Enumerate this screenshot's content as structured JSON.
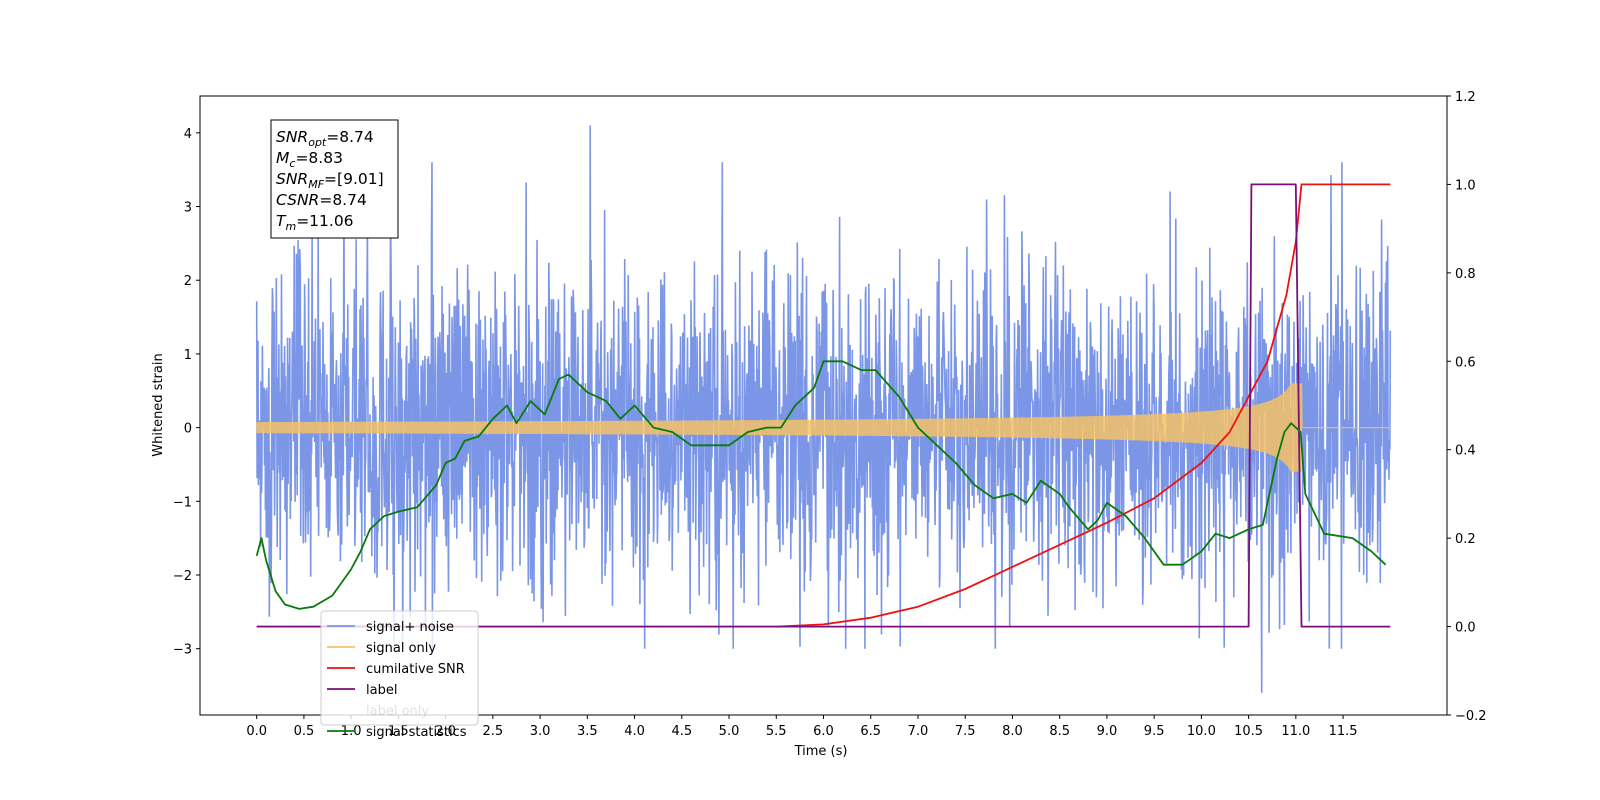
{
  "chart_data": {
    "type": "line",
    "xlabel": "Time (s)",
    "ylabel": "Whitened strain",
    "ylabel_right": "",
    "xlim": [
      -0.6,
      12.6
    ],
    "ylim": [
      -3.9,
      4.5
    ],
    "ylim_right": [
      -0.2,
      1.2
    ],
    "x_ticks": [
      "0.0",
      "0.5",
      "1.0",
      "1.5",
      "2.0",
      "2.5",
      "3.0",
      "3.5",
      "4.0",
      "4.5",
      "5.0",
      "5.5",
      "6.0",
      "6.5",
      "7.0",
      "7.5",
      "8.0",
      "8.5",
      "9.0",
      "9.5",
      "10.0",
      "10.5",
      "11.0",
      "11.5"
    ],
    "y_ticks": [
      "4",
      "3",
      "2",
      "1",
      "0",
      "−1",
      "−2",
      "−3"
    ],
    "y_ticks_right": [
      "1.2",
      "1.0",
      "0.8",
      "0.6",
      "0.4",
      "0.2",
      "0.0",
      "−0.2"
    ],
    "grid": false,
    "legend_position": "lower-left",
    "stats_box": {
      "lines": [
        {
          "symbol": "SNR",
          "sub": "opt",
          "value": "=8.74"
        },
        {
          "symbol": "M",
          "sub": "c",
          "value": "=8.83"
        },
        {
          "symbol": "SNR",
          "sub": "MF",
          "value": "=[9.01]"
        },
        {
          "symbol": "CSNR",
          "sub": "",
          "value": "=8.74"
        },
        {
          "symbol": "T",
          "sub": "m",
          "value": "=11.06"
        }
      ]
    },
    "series": [
      {
        "name": "signal+ noise",
        "color": "#7b96e6",
        "axis": "left",
        "description_values": {
          "x_range": [
            0.0,
            12.0
          ],
          "amplitude_typical": 1.5,
          "peak_max": 4.1,
          "peak_min": -3.6
        }
      },
      {
        "name": "signal only",
        "color": "#f5c267",
        "axis": "left",
        "chirp": {
          "t_start": 0.0,
          "t_merger": 11.06,
          "t_end": 12.0,
          "peak_amplitude": 0.6
        }
      },
      {
        "name": "cumilative SNR",
        "color": "#ee1111",
        "axis": "right",
        "x": [
          0.0,
          5.5,
          6.0,
          6.5,
          7.0,
          7.5,
          8.0,
          8.5,
          9.0,
          9.5,
          10.0,
          10.3,
          10.5,
          10.7,
          10.9,
          11.0,
          11.06,
          11.5,
          12.0
        ],
        "values": [
          0.0,
          0.0,
          0.005,
          0.02,
          0.045,
          0.085,
          0.135,
          0.185,
          0.235,
          0.29,
          0.37,
          0.44,
          0.52,
          0.6,
          0.75,
          0.87,
          1.0,
          1.0,
          1.0
        ]
      },
      {
        "name": "label",
        "color": "#7a0f7a",
        "axis": "right",
        "x": [
          0.0,
          10.5,
          10.53,
          11.0,
          11.06,
          12.0
        ],
        "values": [
          0.0,
          0.0,
          1.0,
          1.0,
          0.0,
          0.0
        ]
      },
      {
        "name": "label only",
        "color": "#7a0f7a",
        "axis": "right",
        "hidden": true
      },
      {
        "name": "signal statistics",
        "color": "#0a7a0a",
        "axis": "right",
        "x": [
          0.0,
          0.05,
          0.1,
          0.2,
          0.3,
          0.45,
          0.6,
          0.8,
          1.0,
          1.1,
          1.2,
          1.35,
          1.5,
          1.7,
          1.9,
          2.0,
          2.1,
          2.2,
          2.35,
          2.5,
          2.65,
          2.75,
          2.9,
          3.05,
          3.2,
          3.3,
          3.5,
          3.7,
          3.85,
          4.0,
          4.2,
          4.4,
          4.6,
          4.8,
          5.0,
          5.2,
          5.4,
          5.55,
          5.7,
          5.9,
          6.0,
          6.2,
          6.4,
          6.55,
          6.8,
          7.0,
          7.2,
          7.4,
          7.6,
          7.8,
          8.0,
          8.15,
          8.3,
          8.5,
          8.6,
          8.8,
          8.9,
          9.0,
          9.2,
          9.4,
          9.6,
          9.8,
          10.0,
          10.15,
          10.3,
          10.5,
          10.65,
          10.8,
          10.88,
          10.95,
          11.05,
          11.1,
          11.3,
          11.6,
          11.8,
          11.95
        ],
        "values": [
          0.16,
          0.2,
          0.15,
          0.08,
          0.05,
          0.04,
          0.045,
          0.07,
          0.13,
          0.17,
          0.22,
          0.25,
          0.26,
          0.27,
          0.32,
          0.37,
          0.38,
          0.42,
          0.43,
          0.47,
          0.5,
          0.46,
          0.51,
          0.48,
          0.56,
          0.57,
          0.53,
          0.51,
          0.47,
          0.5,
          0.45,
          0.44,
          0.41,
          0.41,
          0.41,
          0.44,
          0.45,
          0.45,
          0.5,
          0.54,
          0.6,
          0.6,
          0.58,
          0.58,
          0.52,
          0.45,
          0.41,
          0.37,
          0.32,
          0.29,
          0.3,
          0.28,
          0.33,
          0.3,
          0.27,
          0.22,
          0.24,
          0.28,
          0.25,
          0.2,
          0.14,
          0.14,
          0.17,
          0.21,
          0.2,
          0.22,
          0.23,
          0.38,
          0.44,
          0.46,
          0.44,
          0.3,
          0.21,
          0.2,
          0.17,
          0.14
        ]
      }
    ]
  }
}
